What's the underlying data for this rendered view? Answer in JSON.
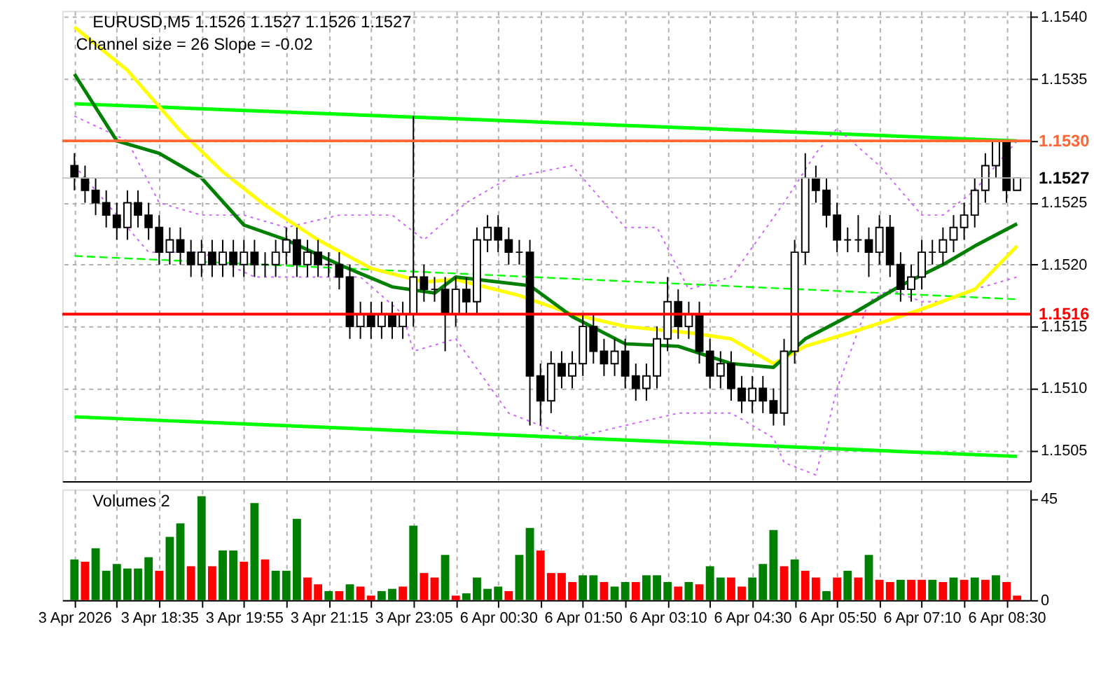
{
  "chart_data": [
    {
      "type": "candlestick",
      "title": "EURUSD,M5  1.1526 1.1527 1.1526 1.1527",
      "subtitle": "Channel size = 26 Slope = -0.02",
      "categories": [
        null,
        null,
        null,
        null,
        null,
        null,
        null,
        null,
        null,
        null,
        null,
        null,
        null,
        null,
        null,
        null,
        null,
        null,
        null,
        null,
        null,
        null,
        null,
        null,
        null,
        null,
        null,
        null,
        null,
        null,
        null,
        null,
        null,
        null,
        null,
        null,
        null,
        null,
        null,
        null,
        null,
        null,
        null,
        null,
        null,
        null,
        null,
        null,
        null,
        null,
        null,
        null,
        null,
        null,
        null,
        null,
        null,
        null,
        null,
        null,
        null,
        null,
        null,
        null,
        null,
        null,
        null,
        null,
        null,
        null,
        null,
        null,
        null,
        null,
        null,
        null,
        null,
        null,
        null,
        null,
        null,
        null,
        null,
        null,
        null,
        null,
        null,
        null,
        null,
        null
      ],
      "ohlc": [
        [
          1.1528,
          1.1529,
          1.1526,
          1.1527
        ],
        [
          1.1527,
          1.1528,
          1.1525,
          1.1526
        ],
        [
          1.1526,
          1.1527,
          1.1524,
          1.1525
        ],
        [
          1.1525,
          1.1526,
          1.1523,
          1.1524
        ],
        [
          1.1524,
          1.1525,
          1.1522,
          1.1523
        ],
        [
          1.1523,
          1.1526,
          1.1522,
          1.1525
        ],
        [
          1.1525,
          1.1526,
          1.1523,
          1.1524
        ],
        [
          1.1524,
          1.1525,
          1.1522,
          1.1523
        ],
        [
          1.1523,
          1.1524,
          1.152,
          1.1521
        ],
        [
          1.1521,
          1.1523,
          1.152,
          1.1522
        ],
        [
          1.1522,
          1.1523,
          1.152,
          1.1521
        ],
        [
          1.1521,
          1.1522,
          1.1519,
          1.152
        ],
        [
          1.152,
          1.1522,
          1.1519,
          1.1521
        ],
        [
          1.1521,
          1.1522,
          1.1519,
          1.152
        ],
        [
          1.152,
          1.1522,
          1.1519,
          1.1521
        ],
        [
          1.1521,
          1.1522,
          1.1519,
          1.152
        ],
        [
          1.152,
          1.1522,
          1.1519,
          1.1521
        ],
        [
          1.1521,
          1.1522,
          1.1519,
          1.152
        ],
        [
          1.152,
          1.1521,
          1.1519,
          1.152
        ],
        [
          1.152,
          1.1522,
          1.1519,
          1.1521
        ],
        [
          1.1521,
          1.1523,
          1.152,
          1.1522
        ],
        [
          1.1522,
          1.1523,
          1.1519,
          1.152
        ],
        [
          1.152,
          1.1522,
          1.1519,
          1.1521
        ],
        [
          1.1521,
          1.1522,
          1.1519,
          1.152
        ],
        [
          1.152,
          1.1521,
          1.1519,
          1.152
        ],
        [
          1.152,
          1.1521,
          1.1518,
          1.1519
        ],
        [
          1.1519,
          1.152,
          1.1514,
          1.1515
        ],
        [
          1.1515,
          1.1517,
          1.1514,
          1.1516
        ],
        [
          1.1516,
          1.1517,
          1.1514,
          1.1515
        ],
        [
          1.1515,
          1.1517,
          1.1514,
          1.1516
        ],
        [
          1.1516,
          1.1517,
          1.1514,
          1.1515
        ],
        [
          1.1515,
          1.1517,
          1.1514,
          1.1516
        ],
        [
          1.1516,
          1.1532,
          1.1515,
          1.1519
        ],
        [
          1.1519,
          1.152,
          1.1517,
          1.1518
        ],
        [
          1.1518,
          1.1519,
          1.1517,
          1.1518
        ],
        [
          1.1518,
          1.1519,
          1.1513,
          1.1516
        ],
        [
          1.1516,
          1.1519,
          1.1515,
          1.1518
        ],
        [
          1.1518,
          1.1519,
          1.1516,
          1.1517
        ],
        [
          1.1517,
          1.1523,
          1.1516,
          1.1522
        ],
        [
          1.1522,
          1.1524,
          1.1521,
          1.1523
        ],
        [
          1.1523,
          1.1524,
          1.1521,
          1.1522
        ],
        [
          1.1522,
          1.1523,
          1.152,
          1.1521
        ],
        [
          1.1521,
          1.1522,
          1.152,
          1.1521
        ],
        [
          1.1521,
          1.1522,
          1.1507,
          1.1511
        ],
        [
          1.1511,
          1.1512,
          1.1507,
          1.1509
        ],
        [
          1.1509,
          1.1513,
          1.1508,
          1.1512
        ],
        [
          1.1512,
          1.1513,
          1.151,
          1.1511
        ],
        [
          1.1511,
          1.1513,
          1.151,
          1.1512
        ],
        [
          1.1512,
          1.1516,
          1.1511,
          1.1515
        ],
        [
          1.1515,
          1.1516,
          1.1512,
          1.1513
        ],
        [
          1.1513,
          1.1514,
          1.1511,
          1.1512
        ],
        [
          1.1512,
          1.1514,
          1.1511,
          1.1513
        ],
        [
          1.1513,
          1.1514,
          1.151,
          1.1511
        ],
        [
          1.1511,
          1.1512,
          1.1509,
          1.151
        ],
        [
          1.151,
          1.1512,
          1.1509,
          1.1511
        ],
        [
          1.1511,
          1.1515,
          1.151,
          1.1514
        ],
        [
          1.1514,
          1.1519,
          1.1513,
          1.1517
        ],
        [
          1.1517,
          1.1518,
          1.1514,
          1.1515
        ],
        [
          1.1515,
          1.1517,
          1.1514,
          1.1516
        ],
        [
          1.1516,
          1.1517,
          1.1512,
          1.1513
        ],
        [
          1.1513,
          1.1514,
          1.151,
          1.1511
        ],
        [
          1.1511,
          1.1513,
          1.151,
          1.1512
        ],
        [
          1.1512,
          1.1513,
          1.1509,
          1.151
        ],
        [
          1.151,
          1.1511,
          1.1508,
          1.1509
        ],
        [
          1.1509,
          1.1511,
          1.1508,
          1.151
        ],
        [
          1.151,
          1.1511,
          1.1508,
          1.1509
        ],
        [
          1.1509,
          1.151,
          1.1507,
          1.1508
        ],
        [
          1.1508,
          1.1514,
          1.1507,
          1.1513
        ],
        [
          1.1513,
          1.1522,
          1.1512,
          1.1521
        ],
        [
          1.1521,
          1.1529,
          1.152,
          1.1527
        ],
        [
          1.1527,
          1.1528,
          1.1525,
          1.1526
        ],
        [
          1.1526,
          1.1527,
          1.1523,
          1.1524
        ],
        [
          1.1524,
          1.1525,
          1.1521,
          1.1522
        ],
        [
          1.1522,
          1.1523,
          1.1521,
          1.1522
        ],
        [
          1.1522,
          1.1524,
          1.1521,
          1.1522
        ],
        [
          1.1522,
          1.1523,
          1.1519,
          1.1521
        ],
        [
          1.1521,
          1.1524,
          1.152,
          1.1523
        ],
        [
          1.1523,
          1.1524,
          1.1519,
          1.152
        ],
        [
          1.152,
          1.1521,
          1.1517,
          1.1518
        ],
        [
          1.1518,
          1.152,
          1.1517,
          1.1519
        ],
        [
          1.1519,
          1.1522,
          1.1518,
          1.1521
        ],
        [
          1.1521,
          1.1522,
          1.152,
          1.1521
        ],
        [
          1.1521,
          1.1523,
          1.152,
          1.1522
        ],
        [
          1.1522,
          1.1524,
          1.1521,
          1.1523
        ],
        [
          1.1523,
          1.1525,
          1.1522,
          1.1524
        ],
        [
          1.1524,
          1.1527,
          1.1523,
          1.1526
        ],
        [
          1.1526,
          1.1529,
          1.1525,
          1.1528
        ],
        [
          1.1528,
          1.153,
          1.1527,
          1.153
        ],
        [
          1.153,
          1.153,
          1.1525,
          1.1526
        ],
        [
          1.1526,
          1.1527,
          1.1526,
          1.1527
        ]
      ],
      "series": [
        {
          "type": "line",
          "color": "#00ff00",
          "line_style": "solid",
          "values": [
            1.1533,
            null,
            null,
            null,
            null,
            null,
            null,
            null,
            null,
            null,
            null,
            null,
            null,
            null,
            null,
            null,
            null,
            null,
            null,
            null,
            null,
            null,
            null,
            null,
            null,
            null,
            null,
            null,
            null,
            null,
            null,
            null,
            null,
            null,
            null,
            null,
            null,
            null,
            null,
            null,
            null,
            null,
            null,
            null,
            null,
            null,
            null,
            null,
            null,
            null,
            null,
            null,
            null,
            null,
            null,
            null,
            null,
            null,
            null,
            null,
            null,
            null,
            null,
            null,
            null,
            null,
            null,
            null,
            null,
            null,
            null,
            null,
            null,
            null,
            null,
            null,
            null,
            null,
            null,
            null,
            null,
            null,
            null,
            null,
            null,
            null,
            null,
            null,
            null,
            1.153
          ]
        },
        {
          "type": "line",
          "color": "#00ff00",
          "line_style": "solid",
          "values": [
            1.15077,
            null,
            null,
            null,
            null,
            null,
            null,
            null,
            null,
            null,
            null,
            null,
            null,
            null,
            null,
            null,
            null,
            null,
            null,
            null,
            null,
            null,
            null,
            null,
            null,
            null,
            null,
            null,
            null,
            null,
            null,
            null,
            null,
            null,
            null,
            null,
            null,
            null,
            null,
            null,
            null,
            null,
            null,
            null,
            null,
            null,
            null,
            null,
            null,
            null,
            null,
            null,
            null,
            null,
            null,
            null,
            null,
            null,
            null,
            null,
            null,
            null,
            null,
            null,
            null,
            null,
            null,
            null,
            null,
            null,
            null,
            null,
            null,
            null,
            null,
            null,
            null,
            null,
            null,
            null,
            null,
            null,
            null,
            null,
            null,
            null,
            null,
            null,
            null,
            1.15045
          ]
        },
        {
          "type": "line",
          "color": "#00ff00",
          "line_style": "dashed",
          "values": [
            1.15207,
            null,
            null,
            null,
            null,
            null,
            null,
            null,
            null,
            null,
            null,
            null,
            null,
            null,
            null,
            null,
            null,
            null,
            null,
            null,
            null,
            null,
            null,
            null,
            null,
            null,
            null,
            null,
            null,
            null,
            null,
            null,
            null,
            null,
            null,
            null,
            null,
            null,
            null,
            null,
            null,
            null,
            null,
            null,
            null,
            null,
            null,
            null,
            null,
            null,
            null,
            null,
            null,
            null,
            null,
            null,
            null,
            null,
            null,
            null,
            null,
            null,
            null,
            null,
            null,
            null,
            null,
            null,
            null,
            null,
            null,
            null,
            null,
            null,
            null,
            null,
            null,
            null,
            null,
            null,
            null,
            null,
            null,
            null,
            null,
            null,
            null,
            null,
            null,
            1.15172
          ]
        },
        {
          "type": "line",
          "color": "#cc66ff",
          "line_style": "dotted",
          "values": [
            1.1532,
            null,
            null,
            null,
            null,
            1.153,
            null,
            null,
            1.1525,
            null,
            null,
            null,
            1.1524,
            null,
            null,
            null,
            1.1524,
            null,
            null,
            null,
            1.1523,
            null,
            null,
            null,
            null,
            1.1524,
            null,
            null,
            null,
            null,
            1.1524,
            null,
            null,
            1.1522,
            null,
            null,
            null,
            1.1525,
            null,
            null,
            null,
            1.1527,
            null,
            null,
            null,
            null,
            null,
            1.1528,
            null,
            null,
            1.1525,
            null,
            1.1523,
            null,
            null,
            1.1523,
            null,
            null,
            1.1518,
            null,
            null,
            null,
            1.1519,
            null,
            null,
            null,
            null,
            1.1525,
            null,
            null,
            1.1529,
            null,
            1.1531,
            null,
            null,
            null,
            1.1528,
            null,
            null,
            null,
            1.1524,
            null,
            1.1524,
            null,
            null,
            1.1526,
            null,
            null,
            null,
            1.153
          ]
        },
        {
          "type": "line",
          "color": "#cc66ff",
          "line_style": "dotted",
          "values": [
            1.1528,
            null,
            null,
            null,
            null,
            1.1523,
            null,
            1.1521,
            null,
            null,
            null,
            null,
            1.1521,
            null,
            null,
            null,
            null,
            1.1519,
            null,
            null,
            null,
            null,
            1.1519,
            null,
            null,
            null,
            null,
            1.1519,
            null,
            null,
            null,
            1.1516,
            1.1513,
            null,
            null,
            null,
            1.1514,
            null,
            null,
            null,
            null,
            1.1508,
            null,
            null,
            null,
            null,
            null,
            1.1506,
            null,
            null,
            null,
            null,
            1.1507,
            null,
            null,
            null,
            null,
            1.1508,
            null,
            null,
            null,
            null,
            1.1508,
            null,
            null,
            null,
            1.1506,
            1.1504,
            null,
            null,
            1.1503,
            null,
            1.151,
            null,
            null,
            1.1517,
            null,
            1.1518,
            null,
            null,
            1.1517,
            null,
            1.1517,
            null,
            null,
            1.1518,
            null,
            null,
            null,
            1.1519
          ]
        },
        {
          "type": "line",
          "color": "#ffff00",
          "line_style": "solid",
          "values": [
            1.15392,
            null,
            null,
            null,
            null,
            1.15357,
            null,
            null,
            null,
            null,
            1.15308,
            null,
            null,
            null,
            1.15275,
            null,
            null,
            null,
            1.15248,
            null,
            null,
            null,
            null,
            1.1522,
            null,
            null,
            null,
            null,
            1.15197,
            null,
            null,
            null,
            null,
            1.15186,
            null,
            null,
            1.15188,
            null,
            null,
            null,
            null,
            null,
            1.15175,
            null,
            null,
            null,
            null,
            1.1516,
            null,
            null,
            null,
            null,
            1.1515,
            null,
            null,
            null,
            null,
            null,
            1.15145,
            null,
            null,
            null,
            1.1514,
            null,
            null,
            null,
            1.1512,
            null,
            null,
            1.15134,
            null,
            null,
            null,
            null,
            1.15147,
            null,
            null,
            null,
            null,
            null,
            1.15164,
            null,
            null,
            null,
            null,
            1.1518,
            null,
            null,
            null,
            1.15215
          ]
        },
        {
          "type": "line",
          "color": "#008000",
          "line_style": "solid",
          "values": [
            1.15354,
            null,
            null,
            null,
            1.153,
            null,
            null,
            null,
            1.1529,
            null,
            null,
            null,
            1.1527,
            null,
            null,
            null,
            1.15232,
            null,
            null,
            null,
            1.1522,
            null,
            null,
            null,
            null,
            1.152,
            null,
            null,
            null,
            null,
            1.15182,
            null,
            null,
            null,
            1.15177,
            null,
            1.1519,
            null,
            null,
            null,
            null,
            null,
            null,
            1.15183,
            null,
            null,
            null,
            1.15158,
            null,
            null,
            null,
            null,
            1.15136,
            null,
            null,
            null,
            null,
            1.15134,
            null,
            null,
            null,
            null,
            1.1512,
            null,
            null,
            null,
            1.15117,
            null,
            null,
            1.1514,
            null,
            null,
            null,
            1.15158,
            null,
            null,
            null,
            null,
            1.15183,
            null,
            null,
            null,
            1.152,
            null,
            null,
            1.15215,
            null,
            null,
            null,
            1.15233
          ]
        }
      ],
      "ylim": [
        1.15025,
        1.15405
      ],
      "yticks": [
        1.1505,
        {
          "value": 1.151,
          "label": "1.1510"
        },
        1.1515,
        {
          "value": 1.152,
          "label": "1.1520"
        },
        1.1525,
        {
          "value": 1.153,
          "label": null
        },
        1.1535,
        {
          "value": 1.154,
          "label": "1.1540"
        }
      ],
      "tick_labels": "y",
      "grid": true,
      "ref_lines": [
        {
          "axis": "y",
          "value": 1.153,
          "label": "1.1530",
          "color": "#ff6633"
        },
        {
          "axis": "y",
          "value": 1.1516,
          "label": "1.1516",
          "color": "#ff0000"
        },
        {
          "axis": "y",
          "value": 1.1527,
          "label": "1.1527",
          "color": "#c0c0c0"
        }
      ]
    },
    {
      "type": "bar",
      "title": "Volumes 2",
      "categories": [
        "3 Apr 2026",
        null,
        null,
        null,
        null,
        null,
        null,
        null,
        "3 Apr 18:35",
        null,
        null,
        null,
        null,
        null,
        null,
        null,
        "3 Apr 19:55",
        null,
        null,
        null,
        null,
        null,
        null,
        null,
        "3 Apr 21:15",
        null,
        null,
        null,
        null,
        null,
        null,
        null,
        "3 Apr 23:05",
        null,
        null,
        null,
        null,
        null,
        null,
        null,
        "6 Apr 00:30",
        null,
        null,
        null,
        null,
        null,
        null,
        null,
        "6 Apr 01:50",
        null,
        null,
        null,
        null,
        null,
        null,
        null,
        "6 Apr 03:10",
        null,
        null,
        null,
        null,
        null,
        null,
        null,
        "6 Apr 04:30",
        null,
        null,
        null,
        null,
        null,
        null,
        null,
        "6 Apr 05:50",
        null,
        null,
        null,
        null,
        null,
        null,
        null,
        "6 Apr 07:10",
        null,
        null,
        null,
        null,
        null,
        null,
        null,
        "6 Apr 08:30",
        null
      ],
      "values": [
        18,
        17,
        23,
        13,
        16,
        14,
        14,
        19,
        13,
        28,
        34,
        15,
        46,
        15,
        22,
        22,
        17,
        43,
        18,
        13,
        13,
        36,
        10,
        7,
        4,
        4,
        7,
        6,
        2,
        4,
        5,
        6,
        33,
        12,
        10,
        20,
        2,
        3,
        10,
        5,
        6,
        4,
        20,
        32,
        22,
        12,
        12,
        8,
        11,
        11,
        8,
        6,
        8,
        8,
        11,
        11,
        8,
        6,
        8,
        7,
        15,
        10,
        10,
        6,
        10,
        16,
        31,
        15,
        18,
        13,
        10,
        4,
        10,
        13,
        10,
        20,
        9,
        8,
        9,
        9,
        9,
        9,
        8,
        10,
        9,
        10,
        9,
        11,
        8,
        2
      ],
      "colors": [
        "#008000",
        "#ff0000",
        "#008000",
        "#008000",
        "#008000",
        "#008000",
        "#008000",
        "#008000",
        "#ff0000",
        "#008000",
        "#008000",
        "#ff0000",
        "#008000",
        "#ff0000",
        "#008000",
        "#008000",
        "#ff0000",
        "#008000",
        "#ff0000",
        "#008000",
        "#008000",
        "#008000",
        "#ff0000",
        "#ff0000",
        "#008000",
        "#ff0000",
        "#008000",
        "#ff0000",
        "#ff0000",
        "#008000",
        "#008000",
        "#ff0000",
        "#008000",
        "#ff0000",
        "#ff0000",
        "#008000",
        "#ff0000",
        "#008000",
        "#008000",
        "#008000",
        "#008000",
        "#ff0000",
        "#008000",
        "#008000",
        "#ff0000",
        "#ff0000",
        "#ff0000",
        "#ff0000",
        "#008000",
        "#008000",
        "#ff0000",
        "#008000",
        "#008000",
        "#ff0000",
        "#008000",
        "#008000",
        "#008000",
        "#ff0000",
        "#008000",
        "#ff0000",
        "#008000",
        "#008000",
        "#ff0000",
        "#ff0000",
        "#008000",
        "#008000",
        "#008000",
        "#ff0000",
        "#008000",
        "#ff0000",
        "#ff0000",
        "#008000",
        "#ff0000",
        "#008000",
        "#ff0000",
        "#008000",
        "#ff0000",
        "#ff0000",
        "#008000",
        "#ff0000",
        "#ff0000",
        "#008000",
        "#ff0000",
        "#008000",
        "#ff0000",
        "#008000",
        "#ff0000",
        "#008000",
        "#ff0000",
        "#ff0000"
      ],
      "ylim": [
        0,
        49
      ],
      "yticks": [
        0,
        45
      ],
      "grid": "x"
    }
  ]
}
